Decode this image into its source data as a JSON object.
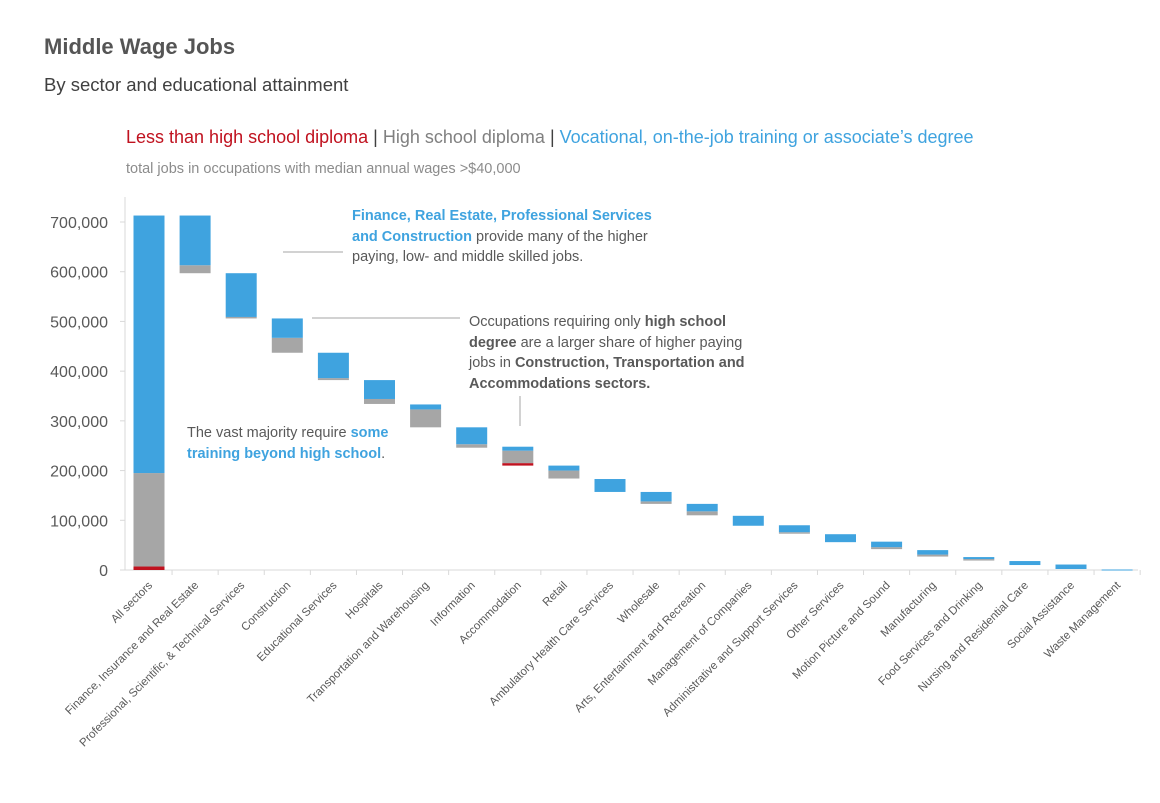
{
  "title": "Middle Wage Jobs",
  "subtitle": "By sector and educational attainment",
  "legend": {
    "less_hs": "Less than high school diploma",
    "sep1": " | ",
    "hs": "High school diploma",
    "sep2": " | ",
    "vocational": "Vocational, on-the-job training or associate’s degree"
  },
  "note": "total jobs in occupations with median  annual wages >$40,000",
  "annotations": {
    "finance": {
      "hl1": "Finance, Real Estate, Professional Services",
      "hl2": "and Construction",
      "t1": " provide many of the higher",
      "t2": "paying, low- and middle skilled jobs."
    },
    "highschool": {
      "t1": "Occupations requiring only ",
      "b1": "high school",
      "b2": "degree",
      "t2": " are a larger share of higher paying",
      "t3": "jobs in ",
      "b3": "Construction, Transportation and",
      "b4": "Accommodations sectors."
    },
    "majority": {
      "t1": "The vast majority require ",
      "hl1": "some",
      "hl2": "training beyond high school",
      "t2": "."
    }
  },
  "colors": {
    "less_hs": "#c0121f",
    "hs": "#a6a6a6",
    "vocational": "#3fa3df",
    "axis": "#d9d9d9",
    "text": "#595959"
  },
  "chart_data": {
    "type": "bar",
    "subtype": "waterfall-stacked",
    "title": "Middle Wage Jobs",
    "subtitle": "By sector and educational attainment",
    "ylim": [
      0,
      700000
    ],
    "yticks": [
      0,
      100000,
      200000,
      300000,
      400000,
      500000,
      600000,
      700000
    ],
    "ytick_labels": [
      "0",
      "100,000",
      "200,000",
      "300,000",
      "400,000",
      "500,000",
      "600,000",
      "700,000"
    ],
    "grid": false,
    "legend": "top",
    "series_names": [
      "Less than high school diploma",
      "High school diploma",
      "Vocational, on-the-job training or associate’s degree"
    ],
    "categories": [
      "All sectors",
      "Finance, Insurance and Real Estate",
      "Professional, Scientific, & Technical Services",
      "Construction",
      "Educational Services",
      "Hospitals",
      "Transportation and Warehousing",
      "Information",
      "Accommodation",
      "Retail",
      "Ambulatory Health Care Services",
      "Wholesale",
      "Arts, Entertainment and Recreation",
      "Management of Companies",
      "Administrative and Support Services",
      "Other Services",
      "Motion Picture and Sound",
      "Manufacturing",
      "Food Services and Drinking",
      "Nursing and Residential Care",
      "Social Assistance",
      "Waste Management"
    ],
    "bars": [
      {
        "base": 0,
        "less_hs": 7000,
        "hs": 188000,
        "vocational": 518000
      },
      {
        "base": 597000,
        "less_hs": 0,
        "hs": 16000,
        "vocational": 100000
      },
      {
        "base": 506000,
        "less_hs": 0,
        "hs": 3000,
        "vocational": 88000
      },
      {
        "base": 437000,
        "less_hs": 0,
        "hs": 30000,
        "vocational": 39000
      },
      {
        "base": 382000,
        "less_hs": 0,
        "hs": 4000,
        "vocational": 51000
      },
      {
        "base": 334000,
        "less_hs": 0,
        "hs": 10000,
        "vocational": 38000
      },
      {
        "base": 287000,
        "less_hs": 0,
        "hs": 36000,
        "vocational": 10000
      },
      {
        "base": 246000,
        "less_hs": 0,
        "hs": 7000,
        "vocational": 34000
      },
      {
        "base": 210000,
        "less_hs": 5000,
        "hs": 25000,
        "vocational": 8000
      },
      {
        "base": 184000,
        "less_hs": 0,
        "hs": 16000,
        "vocational": 10000
      },
      {
        "base": 157000,
        "less_hs": 0,
        "hs": 0,
        "vocational": 26000
      },
      {
        "base": 133000,
        "less_hs": 0,
        "hs": 5000,
        "vocational": 19000
      },
      {
        "base": 110000,
        "less_hs": 0,
        "hs": 8000,
        "vocational": 15000
      },
      {
        "base": 89000,
        "less_hs": 0,
        "hs": 0,
        "vocational": 20000
      },
      {
        "base": 73000,
        "less_hs": 0,
        "hs": 3000,
        "vocational": 14000
      },
      {
        "base": 56000,
        "less_hs": 0,
        "hs": 0,
        "vocational": 16000
      },
      {
        "base": 42000,
        "less_hs": 0,
        "hs": 4000,
        "vocational": 11000
      },
      {
        "base": 27000,
        "less_hs": 0,
        "hs": 4000,
        "vocational": 9000
      },
      {
        "base": 19000,
        "less_hs": 0,
        "hs": 3000,
        "vocational": 4000
      },
      {
        "base": 10000,
        "less_hs": 0,
        "hs": 0,
        "vocational": 8000
      },
      {
        "base": 2000,
        "less_hs": 0,
        "hs": 0,
        "vocational": 9000
      },
      {
        "base": 0,
        "less_hs": 0,
        "hs": 0,
        "vocational": 1000
      }
    ]
  }
}
